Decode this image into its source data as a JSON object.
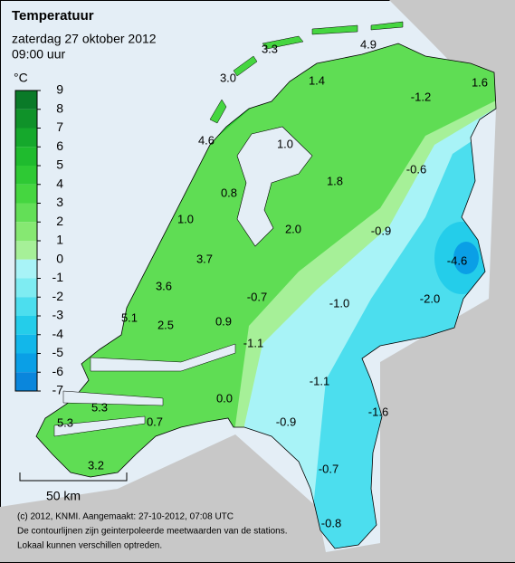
{
  "header": {
    "title": "Temperatuur",
    "date": "zaterdag 27 oktober 2012",
    "time": "09:00 uur"
  },
  "legend": {
    "unit": "°C",
    "ticks": [
      9,
      8,
      7,
      6,
      5,
      4,
      3,
      2,
      1,
      0,
      -1,
      -2,
      -3,
      -4,
      -5,
      -6,
      -7
    ],
    "colors": [
      "#0a7a28",
      "#0f9229",
      "#15a82c",
      "#1fbb2e",
      "#2ec934",
      "#45d640",
      "#63df57",
      "#86e872",
      "#a6f098",
      "#a8f3f7",
      "#7eecf2",
      "#4cdeee",
      "#24cdea",
      "#12b7ea",
      "#0a9fe6",
      "#0a86dc"
    ]
  },
  "stations": [
    "3.3",
    "4.9",
    "3.0",
    "1.4",
    "1.6",
    "-1.2",
    "4.6",
    "1.0",
    "-0.6",
    "1.8",
    "0.8",
    "1.0",
    "2.0",
    "-0.9",
    "3.7",
    "-4.6",
    "3.6",
    "-0.7",
    "-1.0",
    "-2.0",
    "5.1",
    "2.5",
    "0.9",
    "-1.1",
    "-1.1",
    "0.0",
    "5.3",
    "-1.6",
    "0.7",
    "-0.9",
    "5.3",
    "3.2",
    "-0.7",
    "-0.8"
  ],
  "scale": "50 km",
  "footer": [
    "(c) 2012, KNMI. Aangemaakt: 27-10-2012, 07:08 UTC",
    "De contourlijnen zijn geinterpoleerde meetwaarden van de stations.",
    "Lokaal kunnen verschillen optreden."
  ]
}
